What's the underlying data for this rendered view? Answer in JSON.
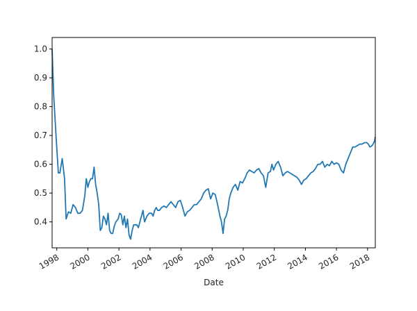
{
  "chart_data": {
    "type": "line",
    "title": "",
    "xlabel": "Date",
    "ylabel": "",
    "xlim": [
      1997.7,
      2018.5
    ],
    "ylim": [
      0.31,
      1.04
    ],
    "grid": false,
    "legend": "none",
    "colors": {
      "line": "#1f77b4",
      "axis": "#000000",
      "background": "#ffffff"
    },
    "x_ticks": [
      {
        "value": 1998,
        "label": "1998"
      },
      {
        "value": 2000,
        "label": "2000"
      },
      {
        "value": 2002,
        "label": "2002"
      },
      {
        "value": 2004,
        "label": "2004"
      },
      {
        "value": 2006,
        "label": "2006"
      },
      {
        "value": 2008,
        "label": "2008"
      },
      {
        "value": 2010,
        "label": "2010"
      },
      {
        "value": 2012,
        "label": "2012"
      },
      {
        "value": 2014,
        "label": "2014"
      },
      {
        "value": 2016,
        "label": "2016"
      },
      {
        "value": 2018,
        "label": "2018"
      }
    ],
    "y_ticks": [
      {
        "value": 0.4,
        "label": "0.4"
      },
      {
        "value": 0.5,
        "label": "0.5"
      },
      {
        "value": 0.6,
        "label": "0.6"
      },
      {
        "value": 0.7,
        "label": "0.7"
      },
      {
        "value": 0.8,
        "label": "0.8"
      },
      {
        "value": 0.9,
        "label": "0.9"
      },
      {
        "value": 1.0,
        "label": "1.0"
      }
    ],
    "series": [
      {
        "x": [
          1997.7,
          1997.8,
          1997.95,
          1998.1,
          1998.2,
          1998.35,
          1998.5,
          1998.6,
          1998.75,
          1998.9,
          1999.05,
          1999.2,
          1999.35,
          1999.5,
          1999.65,
          1999.8,
          1999.9,
          2000.0,
          2000.1,
          2000.2,
          2000.3,
          2000.4,
          2000.5,
          2000.6,
          2000.7,
          2000.8,
          2000.9,
          2001.0,
          2001.1,
          2001.2,
          2001.3,
          2001.4,
          2001.5,
          2001.6,
          2001.7,
          2001.8,
          2001.95,
          2002.05,
          2002.15,
          2002.25,
          2002.35,
          2002.45,
          2002.55,
          2002.65,
          2002.75,
          2002.85,
          2002.95,
          2003.05,
          2003.15,
          2003.25,
          2003.35,
          2003.45,
          2003.55,
          2003.65,
          2003.8,
          2003.95,
          2004.1,
          2004.2,
          2004.3,
          2004.4,
          2004.5,
          2004.6,
          2004.75,
          2004.9,
          2005.05,
          2005.2,
          2005.35,
          2005.5,
          2005.65,
          2005.8,
          2005.95,
          2006.1,
          2006.25,
          2006.4,
          2006.55,
          2006.7,
          2006.85,
          2007.0,
          2007.15,
          2007.3,
          2007.45,
          2007.6,
          2007.75,
          2007.9,
          2008.05,
          2008.2,
          2008.35,
          2008.5,
          2008.6,
          2008.7,
          2008.8,
          2008.9,
          2009.0,
          2009.1,
          2009.2,
          2009.35,
          2009.5,
          2009.65,
          2009.8,
          2009.95,
          2010.1,
          2010.25,
          2010.4,
          2010.55,
          2010.7,
          2010.85,
          2011.0,
          2011.15,
          2011.3,
          2011.45,
          2011.6,
          2011.75,
          2011.85,
          2011.95,
          2012.1,
          2012.25,
          2012.4,
          2012.55,
          2012.7,
          2012.85,
          2013.0,
          2013.15,
          2013.3,
          2013.45,
          2013.6,
          2013.75,
          2013.9,
          2014.05,
          2014.2,
          2014.35,
          2014.5,
          2014.65,
          2014.8,
          2014.95,
          2015.1,
          2015.25,
          2015.4,
          2015.55,
          2015.7,
          2015.85,
          2016.0,
          2016.15,
          2016.3,
          2016.45,
          2016.6,
          2016.75,
          2016.9,
          2017.05,
          2017.2,
          2017.35,
          2017.5,
          2017.65,
          2017.8,
          2017.95,
          2018.05,
          2018.15,
          2018.3,
          2018.45,
          2018.5
        ],
        "values": [
          1.0,
          0.84,
          0.7,
          0.57,
          0.57,
          0.62,
          0.55,
          0.41,
          0.435,
          0.43,
          0.46,
          0.45,
          0.43,
          0.43,
          0.44,
          0.49,
          0.55,
          0.52,
          0.54,
          0.55,
          0.55,
          0.59,
          0.53,
          0.5,
          0.46,
          0.37,
          0.38,
          0.42,
          0.41,
          0.39,
          0.43,
          0.37,
          0.36,
          0.36,
          0.385,
          0.4,
          0.41,
          0.43,
          0.425,
          0.39,
          0.42,
          0.38,
          0.41,
          0.355,
          0.34,
          0.37,
          0.39,
          0.39,
          0.39,
          0.38,
          0.4,
          0.42,
          0.44,
          0.4,
          0.42,
          0.43,
          0.43,
          0.42,
          0.44,
          0.45,
          0.44,
          0.44,
          0.45,
          0.455,
          0.45,
          0.46,
          0.47,
          0.46,
          0.45,
          0.47,
          0.475,
          0.45,
          0.42,
          0.435,
          0.44,
          0.45,
          0.46,
          0.46,
          0.47,
          0.48,
          0.5,
          0.51,
          0.515,
          0.48,
          0.5,
          0.495,
          0.46,
          0.42,
          0.4,
          0.36,
          0.41,
          0.42,
          0.44,
          0.48,
          0.5,
          0.52,
          0.53,
          0.51,
          0.54,
          0.535,
          0.55,
          0.57,
          0.58,
          0.575,
          0.57,
          0.58,
          0.585,
          0.57,
          0.56,
          0.52,
          0.57,
          0.575,
          0.6,
          0.58,
          0.6,
          0.61,
          0.59,
          0.56,
          0.57,
          0.575,
          0.57,
          0.565,
          0.56,
          0.555,
          0.545,
          0.53,
          0.545,
          0.55,
          0.56,
          0.57,
          0.575,
          0.585,
          0.6,
          0.6,
          0.61,
          0.59,
          0.6,
          0.595,
          0.61,
          0.6,
          0.605,
          0.6,
          0.58,
          0.57,
          0.6,
          0.62,
          0.64,
          0.66,
          0.66,
          0.665,
          0.67,
          0.67,
          0.675,
          0.675,
          0.67,
          0.66,
          0.665,
          0.68,
          0.695
        ]
      }
    ]
  }
}
